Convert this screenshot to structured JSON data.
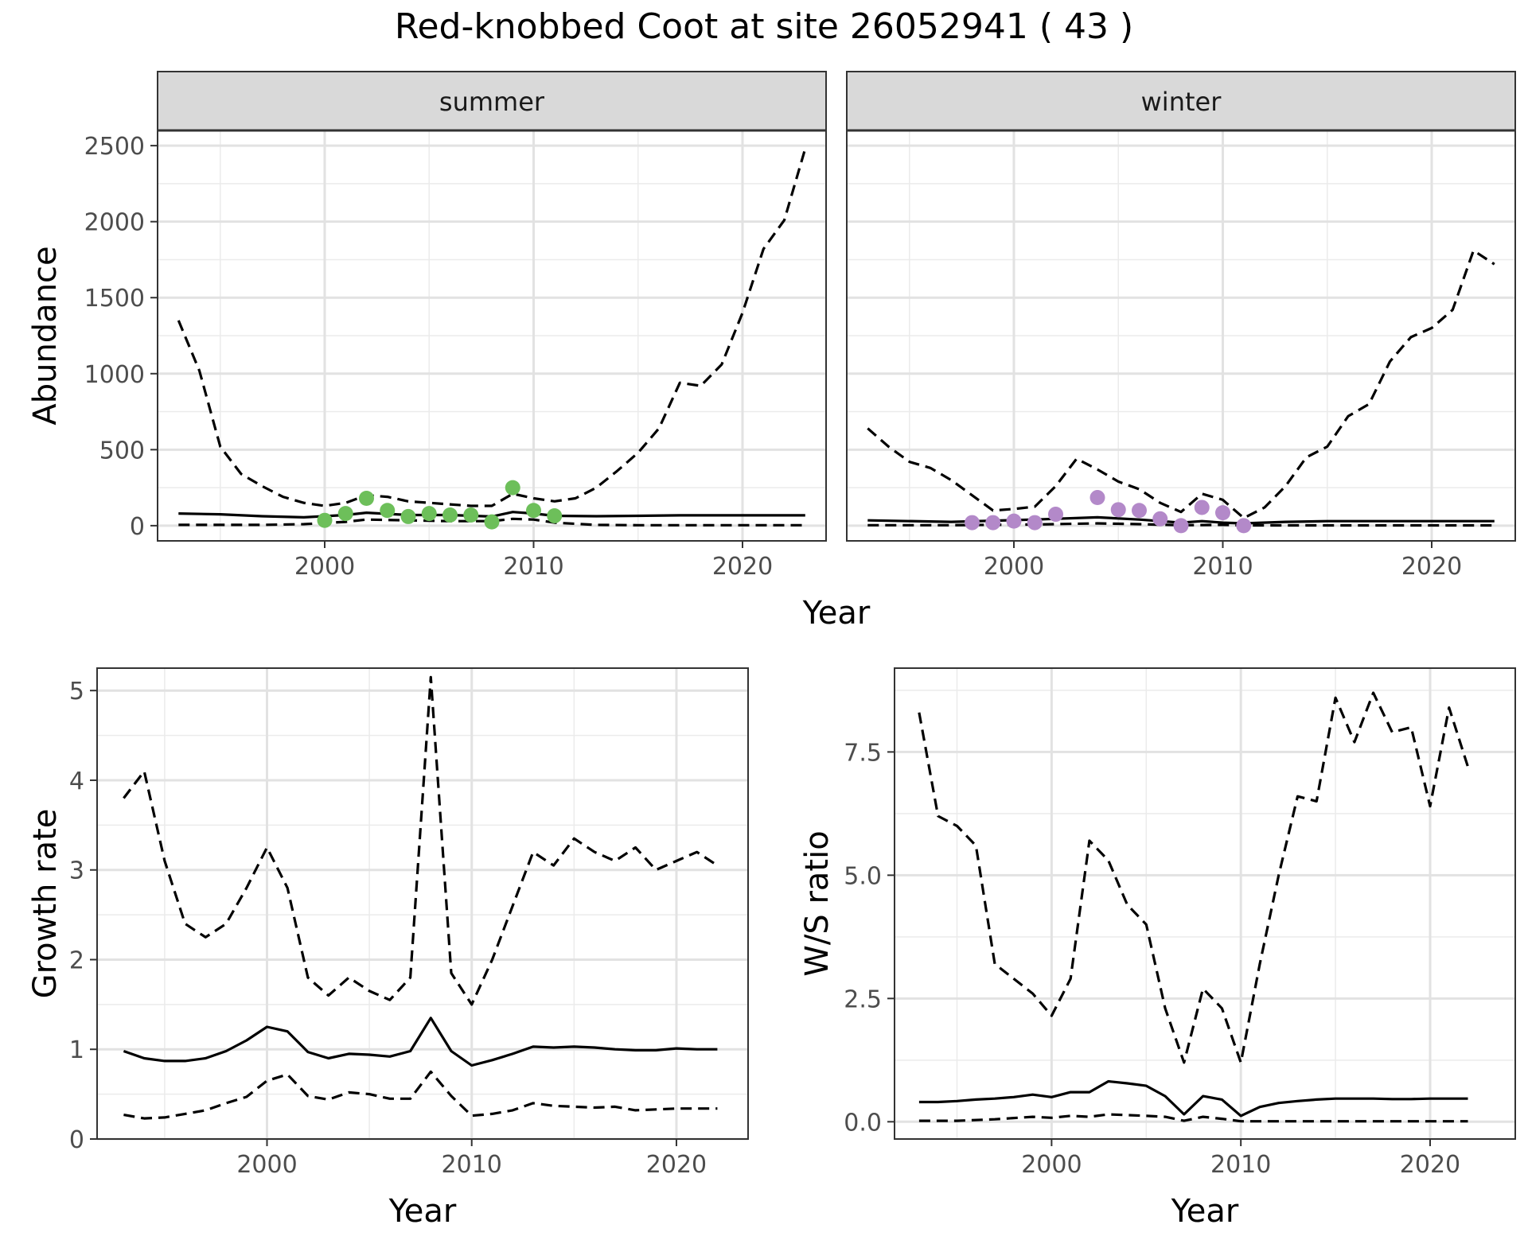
{
  "figure": {
    "title": "Red-knobbed Coot at site 26052941 ( 43 )"
  },
  "chart_data": [
    {
      "type": "line",
      "panel": "summer",
      "facet_label": "summer",
      "xlabel": "",
      "ylabel": "Abundance",
      "xlim": [
        1992,
        2024
      ],
      "ylim": [
        -100,
        2600
      ],
      "x_ticks": [
        2000,
        2010,
        2020
      ],
      "x_tick_labels": [
        "2000",
        "2010",
        "2020"
      ],
      "y_ticks": [
        0,
        500,
        1000,
        1500,
        2000,
        2500
      ],
      "y_tick_labels": [
        "0",
        "500",
        "1000",
        "1500",
        "2000",
        "2500"
      ],
      "grid": true,
      "series": [
        {
          "role": "upper",
          "style": "dashed",
          "x": [
            1993,
            1994,
            1995,
            1996,
            1997,
            1998,
            1999,
            2000,
            2001,
            2002,
            2003,
            2004,
            2005,
            2006,
            2007,
            2008,
            2009,
            2010,
            2011,
            2012,
            2013,
            2014,
            2015,
            2016,
            2017,
            2018,
            2019,
            2020,
            2021,
            2022,
            2023
          ],
          "y": [
            1350,
            1020,
            520,
            340,
            260,
            190,
            150,
            130,
            150,
            200,
            190,
            160,
            150,
            140,
            130,
            130,
            210,
            180,
            160,
            180,
            250,
            360,
            480,
            640,
            940,
            920,
            1060,
            1400,
            1820,
            2010,
            2480
          ]
        },
        {
          "role": "mean",
          "style": "solid",
          "x": [
            1993,
            1995,
            1997,
            1999,
            2001,
            2002,
            2004,
            2006,
            2008,
            2009,
            2010,
            2011,
            2013,
            2015,
            2017,
            2019,
            2021,
            2023
          ],
          "y": [
            80,
            75,
            62,
            55,
            70,
            85,
            70,
            70,
            60,
            90,
            80,
            65,
            62,
            65,
            68,
            68,
            68,
            68
          ]
        },
        {
          "role": "lower",
          "style": "dashed",
          "x": [
            1993,
            1995,
            1997,
            1999,
            2001,
            2002,
            2004,
            2006,
            2008,
            2009,
            2010,
            2011,
            2013,
            2015,
            2017,
            2019,
            2021,
            2023
          ],
          "y": [
            5,
            5,
            5,
            10,
            25,
            40,
            35,
            30,
            30,
            45,
            40,
            20,
            5,
            3,
            3,
            3,
            3,
            3
          ]
        }
      ],
      "points": {
        "color": "#6dbf5a",
        "x": [
          2000,
          2001,
          2002,
          2003,
          2004,
          2005,
          2006,
          2007,
          2008,
          2009,
          2010,
          2011
        ],
        "y": [
          35,
          80,
          180,
          100,
          60,
          80,
          70,
          70,
          25,
          250,
          100,
          65
        ]
      }
    },
    {
      "type": "line",
      "panel": "winter",
      "facet_label": "winter",
      "xlabel": "",
      "ylabel": "",
      "xlim": [
        1992,
        2024
      ],
      "ylim": [
        -100,
        2600
      ],
      "x_ticks": [
        2000,
        2010,
        2020
      ],
      "x_tick_labels": [
        "2000",
        "2010",
        "2020"
      ],
      "y_ticks": [
        0,
        500,
        1000,
        1500,
        2000,
        2500
      ],
      "grid": true,
      "series": [
        {
          "role": "upper",
          "style": "dashed",
          "x": [
            1993,
            1994,
            1995,
            1996,
            1997,
            1998,
            1999,
            2000,
            2001,
            2002,
            2003,
            2004,
            2005,
            2006,
            2007,
            2008,
            2009,
            2010,
            2011,
            2012,
            2013,
            2014,
            2015,
            2016,
            2017,
            2018,
            2019,
            2020,
            2021,
            2022,
            2023
          ],
          "y": [
            640,
            520,
            420,
            380,
            300,
            200,
            100,
            110,
            125,
            260,
            440,
            370,
            290,
            240,
            150,
            90,
            210,
            170,
            50,
            120,
            260,
            450,
            520,
            720,
            800,
            1080,
            1240,
            1300,
            1420,
            1810,
            1720
          ]
        },
        {
          "role": "mean",
          "style": "solid",
          "x": [
            1993,
            1997,
            2001,
            2004,
            2006,
            2008,
            2009,
            2010,
            2011,
            2013,
            2015,
            2017,
            2019,
            2021,
            2023
          ],
          "y": [
            35,
            25,
            40,
            55,
            40,
            20,
            30,
            20,
            15,
            25,
            30,
            30,
            30,
            30,
            30
          ]
        },
        {
          "role": "lower",
          "style": "dashed",
          "x": [
            1993,
            1997,
            2001,
            2004,
            2006,
            2008,
            2010,
            2011,
            2015,
            2019,
            2023
          ],
          "y": [
            3,
            3,
            8,
            15,
            10,
            3,
            5,
            2,
            2,
            2,
            2
          ]
        }
      ],
      "points": {
        "color": "#b389c9",
        "x": [
          1998,
          1999,
          2000,
          2001,
          2002,
          2004,
          2005,
          2006,
          2007,
          2008,
          2009,
          2010,
          2011
        ],
        "y": [
          20,
          20,
          30,
          20,
          75,
          185,
          105,
          100,
          45,
          0,
          120,
          85,
          0
        ]
      }
    },
    {
      "type": "line",
      "panel": "growth",
      "xlabel": "Year",
      "ylabel": "Growth rate",
      "xlim": [
        1991.7,
        2023.5
      ],
      "ylim": [
        0,
        5.25
      ],
      "x_ticks": [
        2000,
        2010,
        2020
      ],
      "x_tick_labels": [
        "2000",
        "2010",
        "2020"
      ],
      "y_ticks": [
        0,
        1,
        2,
        3,
        4,
        5
      ],
      "y_tick_labels": [
        "0",
        "1",
        "2",
        "3",
        "4",
        "5"
      ],
      "grid": true,
      "series": [
        {
          "role": "upper",
          "style": "dashed",
          "x": [
            1993,
            1994,
            1995,
            1996,
            1997,
            1998,
            1999,
            2000,
            2001,
            2002,
            2003,
            2004,
            2005,
            2006,
            2007,
            2008,
            2009,
            2010,
            2011,
            2012,
            2013,
            2014,
            2015,
            2016,
            2017,
            2018,
            2019,
            2020,
            2021,
            2022
          ],
          "y": [
            3.8,
            4.1,
            3.1,
            2.4,
            2.25,
            2.4,
            2.8,
            3.25,
            2.8,
            1.8,
            1.6,
            1.8,
            1.65,
            1.55,
            1.8,
            5.15,
            1.85,
            1.5,
            2.0,
            2.6,
            3.2,
            3.05,
            3.35,
            3.2,
            3.1,
            3.25,
            3.0,
            3.1,
            3.2,
            3.05
          ]
        },
        {
          "role": "mean",
          "style": "solid",
          "x": [
            1993,
            1994,
            1995,
            1996,
            1997,
            1998,
            1999,
            2000,
            2001,
            2002,
            2003,
            2004,
            2005,
            2006,
            2007,
            2008,
            2009,
            2010,
            2011,
            2012,
            2013,
            2014,
            2015,
            2016,
            2017,
            2018,
            2019,
            2020,
            2021,
            2022
          ],
          "y": [
            0.98,
            0.9,
            0.87,
            0.87,
            0.9,
            0.98,
            1.1,
            1.25,
            1.2,
            0.97,
            0.9,
            0.95,
            0.94,
            0.92,
            0.98,
            1.35,
            0.98,
            0.82,
            0.88,
            0.95,
            1.03,
            1.02,
            1.03,
            1.02,
            1.0,
            0.99,
            0.99,
            1.01,
            1.0,
            1.0
          ]
        },
        {
          "role": "lower",
          "style": "dashed",
          "x": [
            1993,
            1994,
            1995,
            1996,
            1997,
            1998,
            1999,
            2000,
            2001,
            2002,
            2003,
            2004,
            2005,
            2006,
            2007,
            2008,
            2009,
            2010,
            2011,
            2012,
            2013,
            2014,
            2015,
            2016,
            2017,
            2018,
            2019,
            2020,
            2021,
            2022
          ],
          "y": [
            0.27,
            0.23,
            0.24,
            0.28,
            0.32,
            0.4,
            0.47,
            0.65,
            0.72,
            0.48,
            0.44,
            0.52,
            0.5,
            0.45,
            0.45,
            0.75,
            0.48,
            0.26,
            0.28,
            0.32,
            0.4,
            0.37,
            0.36,
            0.35,
            0.36,
            0.32,
            0.33,
            0.34,
            0.34,
            0.34
          ]
        }
      ]
    },
    {
      "type": "line",
      "panel": "ratio",
      "xlabel": "Year",
      "ylabel": "W/S ratio",
      "xlim": [
        1991.7,
        2024.5
      ],
      "ylim": [
        -0.35,
        9.2
      ],
      "x_ticks": [
        2000,
        2010,
        2020
      ],
      "x_tick_labels": [
        "2000",
        "2010",
        "2020"
      ],
      "y_ticks": [
        0,
        2.5,
        5,
        7.5
      ],
      "y_tick_labels": [
        "0.0",
        "2.5",
        "5.0",
        "7.5"
      ],
      "grid": true,
      "series": [
        {
          "role": "upper",
          "style": "dashed",
          "x": [
            1993,
            1994,
            1995,
            1996,
            1997,
            1998,
            1999,
            2000,
            2001,
            2002,
            2003,
            2004,
            2005,
            2006,
            2007,
            2008,
            2009,
            2010,
            2011,
            2012,
            2013,
            2014,
            2015,
            2016,
            2017,
            2018,
            2019,
            2020,
            2021,
            2022
          ],
          "y": [
            8.3,
            6.2,
            6.0,
            5.6,
            3.2,
            2.9,
            2.6,
            2.15,
            2.9,
            5.7,
            5.3,
            4.4,
            4.0,
            2.3,
            1.2,
            2.7,
            2.3,
            1.2,
            3.2,
            5.0,
            6.6,
            6.5,
            8.6,
            7.7,
            8.7,
            7.9,
            8.0,
            6.4,
            8.4,
            7.2
          ]
        },
        {
          "role": "mean",
          "style": "solid",
          "x": [
            1993,
            1994,
            1995,
            1996,
            1997,
            1998,
            1999,
            2000,
            2001,
            2002,
            2003,
            2004,
            2005,
            2006,
            2007,
            2008,
            2009,
            2010,
            2011,
            2012,
            2013,
            2014,
            2015,
            2016,
            2017,
            2018,
            2019,
            2020,
            2021,
            2022
          ],
          "y": [
            0.4,
            0.4,
            0.42,
            0.45,
            0.47,
            0.5,
            0.55,
            0.5,
            0.6,
            0.6,
            0.82,
            0.78,
            0.73,
            0.52,
            0.15,
            0.52,
            0.45,
            0.12,
            0.3,
            0.38,
            0.42,
            0.45,
            0.47,
            0.47,
            0.47,
            0.46,
            0.46,
            0.47,
            0.47,
            0.47
          ]
        },
        {
          "role": "lower",
          "style": "dashed",
          "x": [
            1993,
            1995,
            1997,
            1999,
            2000,
            2001,
            2002,
            2003,
            2005,
            2006,
            2007,
            2008,
            2009,
            2010,
            2012,
            2015,
            2018,
            2022
          ],
          "y": [
            0.02,
            0.02,
            0.05,
            0.1,
            0.08,
            0.12,
            0.1,
            0.15,
            0.12,
            0.1,
            0.02,
            0.1,
            0.06,
            0.01,
            0.01,
            0.01,
            0.01,
            0.01
          ]
        }
      ]
    }
  ]
}
